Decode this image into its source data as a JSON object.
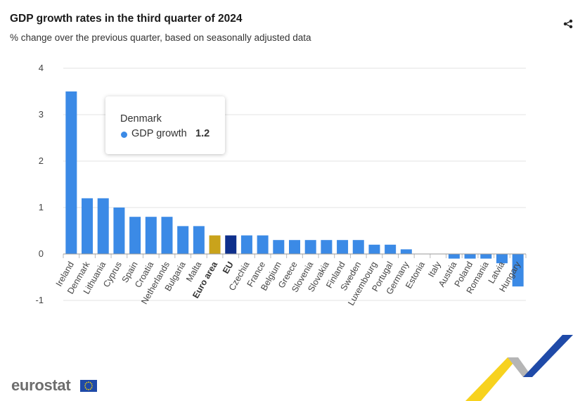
{
  "chart_data": {
    "type": "bar",
    "title": "GDP growth rates in the third quarter of 2024",
    "subtitle": "% change over the previous quarter, based on seasonally adjusted data",
    "categories": [
      "Ireland",
      "Denmark",
      "Lithuania",
      "Cyprus",
      "Spain",
      "Croatia",
      "Netherlands",
      "Bulgaria",
      "Malta",
      "Euro area",
      "EU",
      "Czechia",
      "France",
      "Belgium",
      "Greece",
      "Slovenia",
      "Slovakia",
      "Finland",
      "Sweden",
      "Luxembourg",
      "Portugal",
      "Germany",
      "Estonia",
      "Italy",
      "Austria",
      "Poland",
      "Romania",
      "Latvia",
      "Hungary"
    ],
    "bold_categories": [
      "Euro area",
      "EU"
    ],
    "series": [
      {
        "name": "GDP growth",
        "values": [
          3.5,
          1.2,
          1.2,
          1.0,
          0.8,
          0.8,
          0.8,
          0.6,
          0.6,
          0.4,
          0.4,
          0.4,
          0.4,
          0.3,
          0.3,
          0.3,
          0.3,
          0.3,
          0.3,
          0.2,
          0.2,
          0.1,
          0.0,
          0.0,
          -0.1,
          -0.1,
          -0.1,
          -0.2,
          -0.7
        ]
      }
    ],
    "yticks": [
      4,
      3,
      2,
      1,
      0,
      -1
    ],
    "ylim": [
      -1,
      4
    ],
    "grid": true,
    "legend": "none",
    "colors": {
      "default": "#3b8ae6",
      "Euro area": "#c9a31b",
      "EU": "#0e2f8c"
    }
  },
  "tooltip": {
    "country": "Denmark",
    "series": "GDP growth",
    "value": "1.2"
  },
  "share_icon": "share-icon",
  "logo": {
    "text": "eurostat",
    "flag_icon": "eu-flag-icon"
  }
}
